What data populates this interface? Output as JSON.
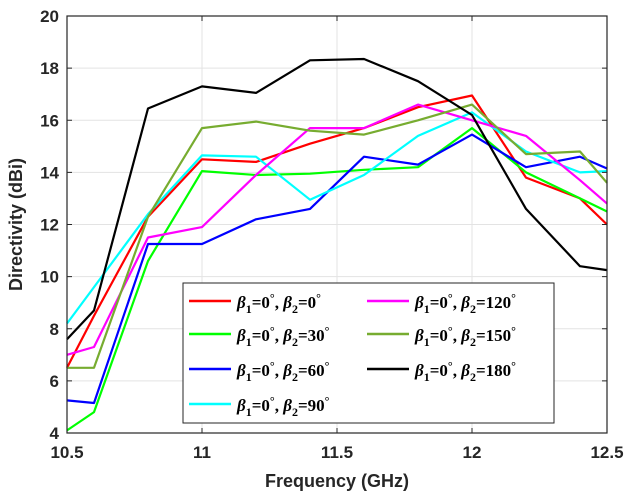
{
  "chart_data": {
    "type": "line",
    "xlabel": "Frequency (GHz)",
    "ylabel": "Directivity (dBi)",
    "xlim": [
      10.5,
      12.5
    ],
    "ylim": [
      4,
      20
    ],
    "x_ticks": [
      "10.5",
      "11",
      "11.5",
      "12",
      "12.5"
    ],
    "y_ticks": [
      "4",
      "6",
      "8",
      "10",
      "12",
      "14",
      "16",
      "18",
      "20"
    ],
    "grid": true,
    "legend_position": "bottom-center",
    "x": [
      10.5,
      10.6,
      10.8,
      11.0,
      11.2,
      11.4,
      11.6,
      11.8,
      12.0,
      12.2,
      12.4,
      12.5
    ],
    "series": [
      {
        "name": "β1=0°, β2=0°",
        "color": "#ff0000",
        "values": [
          6.5,
          8.5,
          12.3,
          14.5,
          14.4,
          15.1,
          15.7,
          16.5,
          16.95,
          13.8,
          13.0,
          12.0
        ]
      },
      {
        "name": "β1=0°, β2=30°",
        "color": "#00ff00",
        "values": [
          4.1,
          4.8,
          10.6,
          14.05,
          13.9,
          13.95,
          14.1,
          14.2,
          15.7,
          14.0,
          13.0,
          12.5
        ]
      },
      {
        "name": "β1=0°, β2=60°",
        "color": "#0000ff",
        "values": [
          5.25,
          5.15,
          11.25,
          11.25,
          12.2,
          12.6,
          14.6,
          14.3,
          15.45,
          14.2,
          14.6,
          14.15
        ]
      },
      {
        "name": "β1=0°, β2=90°",
        "color": "#00ffff",
        "values": [
          8.2,
          9.6,
          12.4,
          14.65,
          14.6,
          12.95,
          13.9,
          15.4,
          16.3,
          14.8,
          14.0,
          14.05
        ]
      },
      {
        "name": "β1=0°, β2=120°",
        "color": "#ff00ff",
        "values": [
          7.0,
          7.3,
          11.5,
          11.9,
          13.9,
          15.7,
          15.7,
          16.6,
          16.0,
          15.4,
          13.7,
          12.8
        ]
      },
      {
        "name": "β1=0°, β2=150°",
        "color": "#77ac30",
        "values": [
          6.5,
          6.5,
          12.3,
          15.7,
          15.95,
          15.6,
          15.45,
          16.0,
          16.6,
          14.7,
          14.8,
          13.6
        ]
      },
      {
        "name": "β1=0°, β2=180°",
        "color": "#000000",
        "values": [
          7.6,
          8.7,
          16.45,
          17.3,
          17.05,
          18.3,
          18.35,
          17.5,
          16.2,
          12.6,
          10.4,
          10.25
        ]
      }
    ],
    "legend": [
      {
        "beta1": "0",
        "beta2": "0"
      },
      {
        "beta1": "0",
        "beta2": "120"
      },
      {
        "beta1": "0",
        "beta2": "30"
      },
      {
        "beta1": "0",
        "beta2": "150"
      },
      {
        "beta1": "0",
        "beta2": "60"
      },
      {
        "beta1": "0",
        "beta2": "180"
      },
      {
        "beta1": "0",
        "beta2": "90"
      }
    ]
  }
}
